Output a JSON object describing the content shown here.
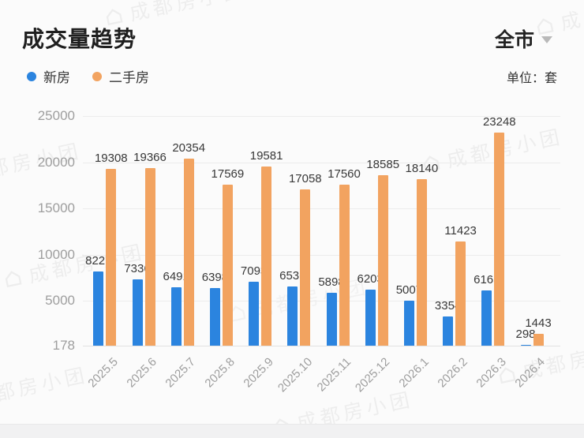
{
  "header": {
    "title": "成交量趋势",
    "region_selector": "全市",
    "unit_label": "单位：套"
  },
  "watermark_text": "成都房小团",
  "chart_data": {
    "type": "bar",
    "title": "成交量趋势",
    "unit": "套",
    "categories": [
      "2025.5",
      "2025.6",
      "2025.7",
      "2025.8",
      "2025.9",
      "2025.10",
      "2025.11",
      "2025.12",
      "2026.1",
      "2026.2",
      "2026.3",
      "2026.4"
    ],
    "series": [
      {
        "name": "新房",
        "color": "#2B84DF",
        "values": [
          8227,
          7336,
          6491,
          6398,
          7093,
          6536,
          5898,
          6203,
          5007,
          3354,
          6165,
          298
        ]
      },
      {
        "name": "二手房",
        "color": "#F2A360",
        "values": [
          19308,
          19366,
          20354,
          17569,
          19581,
          17058,
          17560,
          18585,
          18140,
          11423,
          23248,
          1443
        ]
      }
    ],
    "y_min": 178,
    "y_max": 25000,
    "y_ticks": [
      25000,
      20000,
      15000,
      10000,
      5000,
      178
    ],
    "grid": true,
    "legend_position": "top-left",
    "x_label_rotation": -45
  }
}
